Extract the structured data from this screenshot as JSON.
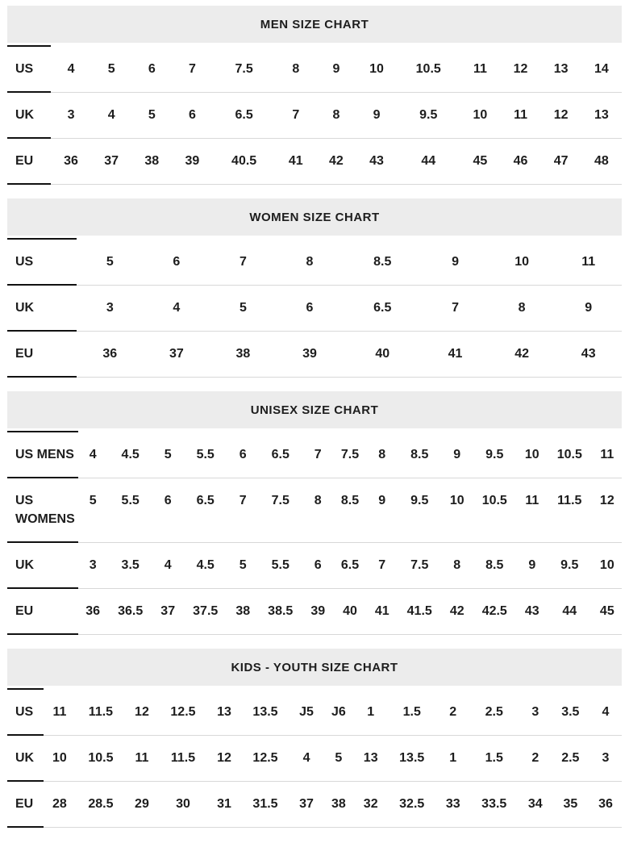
{
  "colors": {
    "header_bg": "#ececec",
    "label_rule": "#111111",
    "row_rule": "#d8d8d8",
    "text": "#1d1d1d"
  },
  "charts": [
    {
      "title": "MEN SIZE CHART",
      "rows": [
        {
          "label": "US",
          "values": [
            "4",
            "5",
            "6",
            "7",
            "7.5",
            "8",
            "9",
            "10",
            "10.5",
            "11",
            "12",
            "13",
            "14"
          ]
        },
        {
          "label": "UK",
          "values": [
            "3",
            "4",
            "5",
            "6",
            "6.5",
            "7",
            "8",
            "9",
            "9.5",
            "10",
            "11",
            "12",
            "13"
          ]
        },
        {
          "label": "EU",
          "values": [
            "36",
            "37",
            "38",
            "39",
            "40.5",
            "41",
            "42",
            "43",
            "44",
            "45",
            "46",
            "47",
            "48"
          ]
        }
      ]
    },
    {
      "title": "WOMEN SIZE CHART",
      "rows": [
        {
          "label": "US",
          "values": [
            "5",
            "6",
            "7",
            "8",
            "8.5",
            "9",
            "10",
            "11"
          ]
        },
        {
          "label": "UK",
          "values": [
            "3",
            "4",
            "5",
            "6",
            "6.5",
            "7",
            "8",
            "9"
          ]
        },
        {
          "label": "EU",
          "values": [
            "36",
            "37",
            "38",
            "39",
            "40",
            "41",
            "42",
            "43"
          ]
        }
      ]
    },
    {
      "title": "UNISEX SIZE CHART",
      "rows": [
        {
          "label": "US MENS",
          "values": [
            "4",
            "4.5",
            "5",
            "5.5",
            "6",
            "6.5",
            "7",
            "7.5",
            "8",
            "8.5",
            "9",
            "9.5",
            "10",
            "10.5",
            "11"
          ]
        },
        {
          "label": "US WOMENS",
          "values": [
            "5",
            "5.5",
            "6",
            "6.5",
            "7",
            "7.5",
            "8",
            "8.5",
            "9",
            "9.5",
            "10",
            "10.5",
            "11",
            "11.5",
            "12"
          ]
        },
        {
          "label": "UK",
          "values": [
            "3",
            "3.5",
            "4",
            "4.5",
            "5",
            "5.5",
            "6",
            "6.5",
            "7",
            "7.5",
            "8",
            "8.5",
            "9",
            "9.5",
            "10"
          ]
        },
        {
          "label": "EU",
          "values": [
            "36",
            "36.5",
            "37",
            "37.5",
            "38",
            "38.5",
            "39",
            "40",
            "41",
            "41.5",
            "42",
            "42.5",
            "43",
            "44",
            "45"
          ]
        }
      ]
    },
    {
      "title": "KIDS - YOUTH SIZE CHART",
      "rows": [
        {
          "label": "US",
          "values": [
            "11",
            "11.5",
            "12",
            "12.5",
            "13",
            "13.5",
            "J5",
            "J6",
            "1",
            "1.5",
            "2",
            "2.5",
            "3",
            "3.5",
            "4"
          ]
        },
        {
          "label": "UK",
          "values": [
            "10",
            "10.5",
            "11",
            "11.5",
            "12",
            "12.5",
            "4",
            "5",
            "13",
            "13.5",
            "1",
            "1.5",
            "2",
            "2.5",
            "3"
          ]
        },
        {
          "label": "EU",
          "values": [
            "28",
            "28.5",
            "29",
            "30",
            "31",
            "31.5",
            "37",
            "38",
            "32",
            "32.5",
            "33",
            "33.5",
            "34",
            "35",
            "36"
          ]
        }
      ]
    }
  ]
}
